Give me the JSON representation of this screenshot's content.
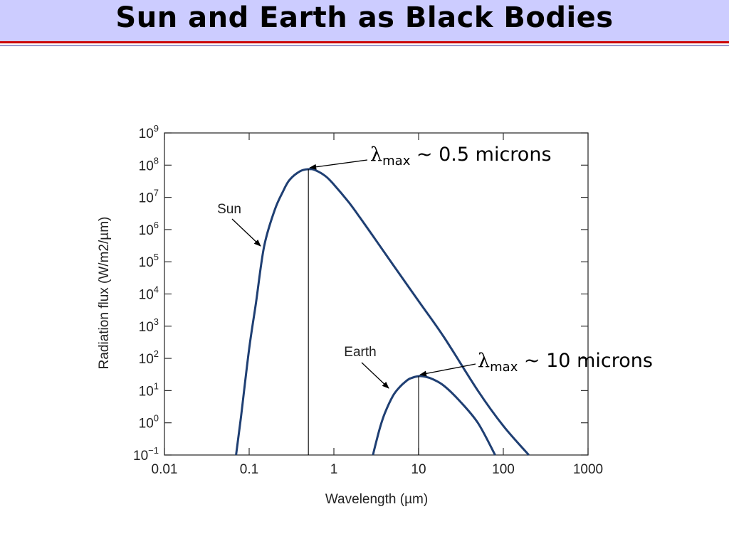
{
  "slide": {
    "title": "Sun and Earth as Black Bodies"
  },
  "chart_data": {
    "type": "line",
    "x_scale": "log",
    "y_scale": "log",
    "xlim": [
      0.01,
      1000
    ],
    "ylim": [
      0.1,
      1000000000
    ],
    "xlabel": "Wavelength (µm)",
    "ylabel": "Radiation flux (W/m2/µm)",
    "x_ticks": [
      "0.01",
      "0.1",
      "1",
      "10",
      "100",
      "1000"
    ],
    "y_ticks": [
      "10^-1",
      "10^0",
      "10^1",
      "10^2",
      "10^3",
      "10^4",
      "10^5",
      "10^6",
      "10^7",
      "10^8",
      "10^9"
    ],
    "series": [
      {
        "name": "Sun",
        "color": "#1f3f73",
        "x": [
          0.07,
          0.08,
          0.1,
          0.12,
          0.15,
          0.2,
          0.25,
          0.3,
          0.4,
          0.5,
          0.6,
          0.8,
          1,
          1.5,
          2,
          3,
          5,
          10,
          20,
          50,
          100,
          200
        ],
        "y": [
          0.1,
          1.5,
          200,
          5000,
          300000,
          4000000,
          15000000,
          35000000,
          65000000,
          75000000,
          70000000,
          45000000,
          25000000,
          7000000,
          2500000,
          550000,
          80000,
          6000,
          450,
          10,
          0.8,
          0.1
        ]
      },
      {
        "name": "Earth",
        "color": "#1f3f73",
        "x": [
          2.9,
          3,
          3.5,
          4,
          5,
          6,
          7,
          8,
          10,
          12,
          15,
          20,
          30,
          50,
          80
        ],
        "y": [
          0.1,
          0.15,
          0.7,
          2,
          7,
          13,
          19,
          24,
          28,
          27,
          22,
          14,
          5,
          1,
          0.1
        ]
      }
    ],
    "labels": {
      "sun": "Sun",
      "earth": "Earth"
    },
    "peaks": [
      {
        "x": 0.5,
        "y": 75000000,
        "label": "λmax ~ 0.5 microns"
      },
      {
        "x": 10,
        "y": 28,
        "label": "λmax ~ 10 microns"
      }
    ]
  }
}
